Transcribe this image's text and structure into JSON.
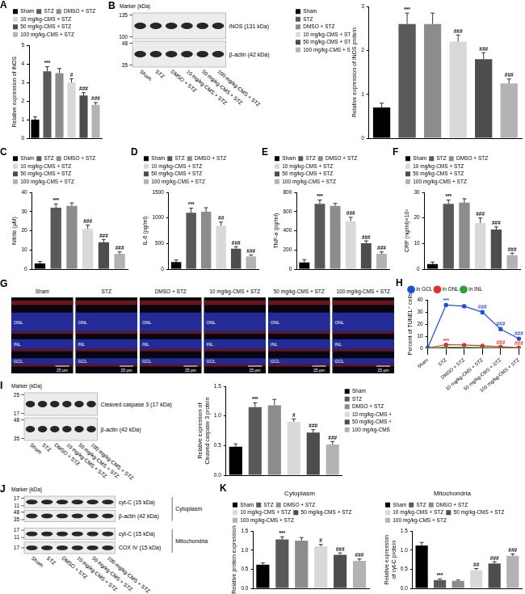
{
  "chart_data": [
    {
      "panel": "A",
      "type": "bar",
      "y_label": "Relative expression of iNOS",
      "categories": [
        "Sham",
        "STZ",
        "DMSO + STZ",
        "10 mg/kg-CMS + STZ",
        "50 mg/kg-CMS + STZ",
        "100 mg/kg-CMS + STZ"
      ],
      "values": [
        1.0,
        3.6,
        3.5,
        3.0,
        2.3,
        1.8
      ],
      "errors": [
        0.15,
        0.25,
        0.25,
        0.2,
        0.15,
        0.12
      ],
      "annotations": [
        null,
        "***",
        null,
        "#",
        "###",
        "###"
      ],
      "colors": [
        "#000000",
        "#595959",
        "#8c8c8c",
        "#d9d9d9",
        "#4d4d4d",
        "#b3b3b3"
      ],
      "ylim": [
        0,
        5
      ],
      "yticks": [
        0,
        1,
        2,
        3,
        4,
        5
      ],
      "grid": false,
      "legend": "top",
      "tick_labels": "y"
    },
    {
      "type": "bar",
      "y_label": "Relative expression of iNOS protein",
      "categories": [
        "Sham",
        "STZ",
        "DMSO + STZ",
        "10 mg/kg-CMS + STZ",
        "50 mg/kg-CMS + STZ",
        "100 mg/kg-CMS + STZ"
      ],
      "values": [
        0.7,
        2.6,
        2.6,
        2.2,
        1.8,
        1.25
      ],
      "errors": [
        0.1,
        0.25,
        0.25,
        0.15,
        0.15,
        0.1
      ],
      "annotations": [
        null,
        "***",
        null,
        "###",
        "###",
        "###"
      ],
      "colors": [
        "#000000",
        "#595959",
        "#8c8c8c",
        "#d9d9d9",
        "#4d4d4d",
        "#b3b3b3"
      ],
      "ylim": [
        0,
        3
      ],
      "yticks": [
        0,
        1,
        2,
        3
      ],
      "grid": false,
      "legend": "left",
      "tick_labels": "y"
    },
    {
      "panel": "C",
      "type": "bar",
      "y_label": "Nitrite (μM)",
      "categories": [
        "Sham",
        "STZ",
        "DMSO + STZ",
        "10 mg/kg-CMS + STZ",
        "50 mg/kg-CMS + STZ",
        "100 mg/kg-CMS + STZ"
      ],
      "values": [
        3,
        32,
        33,
        21,
        14,
        8
      ],
      "errors": [
        1,
        2,
        1.5,
        2,
        1.5,
        1
      ],
      "annotations": [
        null,
        "***",
        null,
        "###",
        "###",
        "###"
      ],
      "colors": [
        "#000000",
        "#595959",
        "#8c8c8c",
        "#d9d9d9",
        "#4d4d4d",
        "#b3b3b3"
      ],
      "ylim": [
        0,
        40
      ],
      "yticks": [
        0,
        10,
        20,
        30,
        40
      ],
      "grid": false,
      "legend": "top",
      "tick_labels": "y"
    },
    {
      "panel": "D",
      "type": "bar",
      "y_label": "IL-6 (pg/ml)",
      "categories": [
        "Sham",
        "STZ",
        "DMSO + STZ",
        "10 mg/kg-CMS + STZ",
        "50 mg/kg-CMS + STZ",
        "100 mg/kg-CMS + STZ"
      ],
      "values": [
        140,
        1100,
        1120,
        850,
        400,
        250
      ],
      "errors": [
        40,
        90,
        80,
        70,
        40,
        30
      ],
      "annotations": [
        null,
        "***",
        null,
        "##",
        "###",
        "###"
      ],
      "colors": [
        "#000000",
        "#595959",
        "#8c8c8c",
        "#d9d9d9",
        "#4d4d4d",
        "#b3b3b3"
      ],
      "ylim": [
        0,
        1500
      ],
      "yticks": [
        0,
        500,
        1000,
        1500
      ],
      "grid": false,
      "legend": "top",
      "tick_labels": "y"
    },
    {
      "panel": "E",
      "type": "bar",
      "y_label": "TNF-α (pg/ml)",
      "categories": [
        "Sham",
        "STZ",
        "DMSO + STZ",
        "10 mg/kg-CMS + STZ",
        "50 mg/kg-CMS + STZ",
        "100 mg/kg-CMS + STZ"
      ],
      "values": [
        70,
        680,
        660,
        500,
        270,
        160
      ],
      "errors": [
        30,
        40,
        25,
        40,
        25,
        20
      ],
      "annotations": [
        null,
        "***",
        null,
        "###",
        "###",
        "###"
      ],
      "colors": [
        "#000000",
        "#595959",
        "#8c8c8c",
        "#d9d9d9",
        "#4d4d4d",
        "#b3b3b3"
      ],
      "ylim": [
        0,
        800
      ],
      "yticks": [
        0,
        200,
        400,
        600,
        800
      ],
      "grid": false,
      "legend": "top",
      "tick_labels": "y"
    },
    {
      "panel": "F",
      "type": "bar",
      "y_label": "CRP (ng/ml)×10³",
      "categories": [
        "Sham",
        "STZ",
        "DMSO + STZ",
        "10 mg/kg-CMS + STZ",
        "50 mg/kg-CMS + STZ",
        "100 mg/kg-CMS + STZ"
      ],
      "values": [
        2,
        25.5,
        26,
        18,
        15.5,
        5.5
      ],
      "errors": [
        0.8,
        1.5,
        1.5,
        2,
        1,
        0.8
      ],
      "annotations": [
        null,
        "***",
        null,
        "###",
        "###",
        "###"
      ],
      "colors": [
        "#000000",
        "#595959",
        "#8c8c8c",
        "#d9d9d9",
        "#4d4d4d",
        "#b3b3b3"
      ],
      "ylim": [
        0,
        30
      ],
      "yticks": [
        0,
        10,
        20,
        30
      ],
      "grid": false,
      "legend": "top",
      "tick_labels": "y"
    },
    {
      "panel": "H",
      "type": "line",
      "y_label": "Percent of TUNEL⁺ cells",
      "categories": [
        "Sham",
        "STZ",
        "DMSO + STZ",
        "10 mg/kg-CMS + STZ",
        "50 mg/kg-CMS + STZ",
        "100 mg/kg-CMS + STZ"
      ],
      "series": [
        {
          "name": "in GCL",
          "color": "#1f4fd8",
          "marker": "circle",
          "values": [
            0.5,
            36,
            35,
            30,
            16,
            8
          ],
          "errors": [
            0.3,
            1,
            1.2,
            1.5,
            1.2,
            1
          ],
          "annotations": [
            null,
            "***",
            null,
            "###",
            "###",
            "###"
          ]
        },
        {
          "name": "in ONL",
          "color": "#e0302a",
          "marker": "circle",
          "values": [
            0.3,
            3,
            2.8,
            2,
            1.2,
            0.6
          ],
          "errors": [
            0.1,
            0.3,
            0.3,
            0.2,
            0.2,
            0.1
          ],
          "annotations": [
            null,
            "***",
            null,
            null,
            "###",
            "###"
          ]
        },
        {
          "name": "in INL",
          "color": "#2ca02c",
          "marker": "circle",
          "values": [
            0.2,
            0.8,
            0.8,
            0.6,
            0.4,
            0.3
          ],
          "errors": [
            0.1,
            0.1,
            0.1,
            0.1,
            0.1,
            0.1
          ]
        }
      ],
      "ylim": [
        0,
        40
      ],
      "yticks": [
        0,
        10,
        20,
        30,
        40
      ],
      "grid": false,
      "legend": "top"
    },
    {
      "type": "bar",
      "y_label": [
        "Relative expression of",
        "Cleaved caspase 3 protein"
      ],
      "categories": [
        "Sham",
        "STZ",
        "DMSO + STZ",
        "10 mg/kg-CMS + STZ",
        "50 mg/kg-CMS + STZ",
        "100 mg/kg-CMS + STZ"
      ],
      "values": [
        0.48,
        1.15,
        1.18,
        0.9,
        0.72,
        0.52
      ],
      "errors": [
        0.05,
        0.07,
        0.1,
        0.05,
        0.05,
        0.05
      ],
      "annotations": [
        null,
        "***",
        null,
        "#",
        "###",
        "###"
      ],
      "colors": [
        "#000000",
        "#595959",
        "#8c8c8c",
        "#d9d9d9",
        "#4d4d4d",
        "#b3b3b3"
      ],
      "ylim": [
        0,
        1.5
      ],
      "yticks": [
        {
          "value": 0,
          "label": "0.0"
        },
        0.5,
        {
          "value": 1,
          "label": "1.0"
        },
        1.5
      ],
      "grid": false,
      "legend": "right",
      "tick_labels": "y"
    },
    {
      "panel": "K",
      "type": "bar",
      "title": "Cytoplasm",
      "y_label": "Relative protein expression",
      "categories": [
        "Sham",
        "STZ",
        "DMSO + STZ",
        "10 mg/kg-CMS + STZ",
        "50 mg/kg-CMS + STZ",
        "100 mg/kg-CMS + STZ"
      ],
      "values": [
        0.62,
        1.28,
        1.25,
        1.1,
        0.88,
        0.72
      ],
      "errors": [
        0.05,
        0.07,
        0.08,
        0.05,
        0.05,
        0.05
      ],
      "annotations": [
        null,
        "***",
        null,
        "#",
        "###",
        "###"
      ],
      "colors": [
        "#000000",
        "#595959",
        "#8c8c8c",
        "#d9d9d9",
        "#4d4d4d",
        "#b3b3b3"
      ],
      "ylim": [
        0,
        1.5
      ],
      "yticks": [
        {
          "value": 0,
          "label": "0.0"
        },
        0.5,
        {
          "value": 1,
          "label": "1.0"
        },
        1.5
      ],
      "grid": false,
      "legend": "top",
      "tick_labels": "y"
    },
    {
      "type": "bar",
      "title": "Mitochondria",
      "y_label": [
        "Relative expression",
        "of cyt-C protein"
      ],
      "categories": [
        "Sham",
        "STZ",
        "DMSO + STZ",
        "10 mg/kg-CMS + STZ",
        "50 mg/kg-CMS + STZ",
        "100 mg/kg-CMS + STZ"
      ],
      "values": [
        1.12,
        0.22,
        0.2,
        0.48,
        0.65,
        0.85
      ],
      "errors": [
        0.08,
        0.03,
        0.02,
        0.04,
        0.05,
        0.05
      ],
      "annotations": [
        null,
        "***",
        null,
        "##",
        "###",
        "###"
      ],
      "colors": [
        "#000000",
        "#595959",
        "#8c8c8c",
        "#d9d9d9",
        "#4d4d4d",
        "#b3b3b3"
      ],
      "ylim": [
        0,
        1.5
      ],
      "yticks": [
        {
          "value": 0,
          "label": "0.0"
        },
        0.5,
        {
          "value": 1,
          "label": "1.0"
        },
        1.5
      ],
      "grid": false,
      "legend": "top",
      "tick_labels": "y"
    }
  ],
  "blots": [
    {
      "panel": "B",
      "marker_title": "Marker (kDa)",
      "lanes": [
        "Sham",
        "STZ",
        "DMSO + STZ",
        "10 mg/kg-CMS + STZ",
        "50 mg/kg-CMS + STZ",
        "100 mg/kg-CMS + STZ"
      ],
      "sections": [
        {
          "rows": [
            {
              "label": "iNOS (131 kDa)",
              "markers": [
                135,
                100
              ]
            },
            {
              "label": "β-actin (42 kDa)",
              "markers": [
                48,
                35
              ]
            }
          ]
        }
      ]
    },
    {
      "panel": "I",
      "marker_title": "Marker (kDa)",
      "lanes": [
        "Sham",
        "STZ",
        "DMSO + STZ",
        "10 mg/kg-CMS + STZ",
        "50 mg/kg-CMS + STZ",
        "100 mg/kg-CMS + STZ"
      ],
      "sections": [
        {
          "rows": [
            {
              "label": "Cleaved caspase 3 (17 kDa)",
              "markers": [
                25,
                17
              ]
            },
            {
              "label": "β-actin (42 kDa)",
              "markers": [
                48,
                35
              ]
            }
          ]
        }
      ]
    },
    {
      "panel": "J",
      "marker_title": "Marker (kDa)",
      "lanes": [
        "Sham",
        "STZ",
        "DMSO + STZ",
        "10 mg/kg-CMS + STZ",
        "50 mg/kg-CMS + STZ",
        "100 mg/kg-CMS + STZ"
      ],
      "sections": [
        {
          "label": "Cytoplasm",
          "rows": [
            {
              "label": "cyt-C (15 kDa)",
              "markers": [
                17,
                11
              ]
            },
            {
              "label": "β-actin (42 kDa)",
              "markers": [
                48,
                35
              ]
            }
          ]
        },
        {
          "label": "Mitochondria",
          "rows": [
            {
              "label": "cyt-C (15 kDa)",
              "markers": [
                17,
                11
              ]
            },
            {
              "label": "COX IV (15 kDa)",
              "markers": [
                17
              ]
            }
          ]
        }
      ]
    }
  ],
  "images": {
    "panel": "G",
    "titles": [
      "Sham",
      "STZ",
      "DMSO + STZ",
      "10 mg/kg-CMS + STZ",
      "50 mg/kg-CMS + STZ",
      "100 mg/kg-CMS + STZ"
    ],
    "layers": [
      "ONL",
      "INL",
      "GCL"
    ],
    "scale_bar": "25 μm"
  }
}
